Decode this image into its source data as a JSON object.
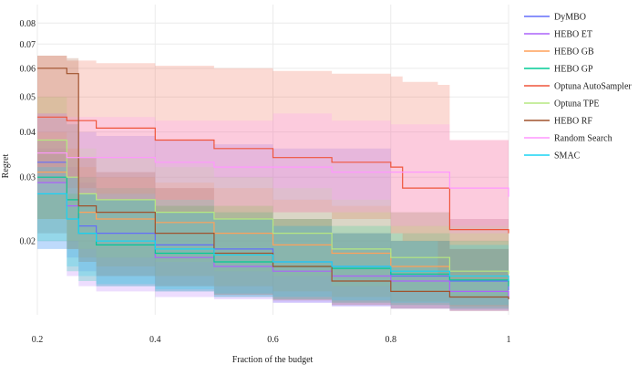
{
  "chart_data": {
    "type": "line",
    "xlabel": "Fraction of the budget",
    "ylabel": "Regret",
    "xlim": [
      0.2,
      1.0
    ],
    "ylim_log": [
      0.0125,
      0.09
    ],
    "y_scale": "log",
    "grid": true,
    "legend_placement": "right",
    "x_ticks": [
      {
        "value": 0.2,
        "label": "0.2"
      },
      {
        "value": 0.4,
        "label": "0.4"
      },
      {
        "value": 0.6,
        "label": "0.6"
      },
      {
        "value": 0.8,
        "label": "0.8"
      },
      {
        "value": 1.0,
        "label": "1"
      }
    ],
    "y_ticks": [
      {
        "value": 0.02,
        "label": "0.02"
      },
      {
        "value": 0.03,
        "label": "0.03"
      },
      {
        "value": 0.04,
        "label": "0.04"
      },
      {
        "value": 0.05,
        "label": "0.05"
      },
      {
        "value": 0.06,
        "label": "0.06"
      },
      {
        "value": 0.07,
        "label": "0.07"
      },
      {
        "value": 0.08,
        "label": "0.08"
      }
    ],
    "series": [
      {
        "name": "DyMBO",
        "color": "#636efa",
        "x": [
          0.2,
          0.25,
          0.27,
          0.3,
          0.4,
          0.5,
          0.6,
          0.7,
          0.8,
          0.9,
          1.0
        ],
        "y": [
          0.033,
          0.026,
          0.022,
          0.021,
          0.0195,
          0.019,
          0.0175,
          0.017,
          0.016,
          0.0155,
          0.0146
        ],
        "band_upper": [
          0.045,
          0.042,
          0.04,
          0.039,
          0.038,
          0.037,
          0.036,
          0.036,
          0.024,
          0.023,
          0.022
        ],
        "band_lower": [
          0.024,
          0.021,
          0.018,
          0.0165,
          0.015,
          0.0145,
          0.014,
          0.0135,
          0.0132,
          0.013,
          0.0129
        ]
      },
      {
        "name": "HEBO ET",
        "color": "#ab63fa",
        "x": [
          0.2,
          0.25,
          0.27,
          0.3,
          0.4,
          0.5,
          0.6,
          0.7,
          0.8,
          0.9,
          1.0
        ],
        "y": [
          0.029,
          0.025,
          0.021,
          0.0195,
          0.018,
          0.017,
          0.0165,
          0.016,
          0.0155,
          0.0145,
          0.0138
        ],
        "band_upper": [
          0.036,
          0.032,
          0.029,
          0.027,
          0.025,
          0.023,
          0.022,
          0.021,
          0.02,
          0.019,
          0.018
        ],
        "band_lower": [
          0.022,
          0.019,
          0.016,
          0.015,
          0.0145,
          0.014,
          0.0138,
          0.0135,
          0.0132,
          0.013,
          0.0128
        ]
      },
      {
        "name": "HEBO GB",
        "color": "#ffa15a",
        "x": [
          0.2,
          0.25,
          0.27,
          0.3,
          0.4,
          0.5,
          0.6,
          0.7,
          0.8,
          0.9,
          1.0
        ],
        "y": [
          0.031,
          0.026,
          0.024,
          0.023,
          0.0225,
          0.021,
          0.0195,
          0.0185,
          0.017,
          0.016,
          0.0152
        ],
        "band_upper": [
          0.04,
          0.036,
          0.032,
          0.03,
          0.029,
          0.028,
          0.026,
          0.025,
          0.024,
          0.023,
          0.022
        ],
        "band_lower": [
          0.024,
          0.021,
          0.019,
          0.018,
          0.017,
          0.016,
          0.015,
          0.0145,
          0.014,
          0.0136,
          0.0132
        ]
      },
      {
        "name": "HEBO GP",
        "color": "#00cc96",
        "x": [
          0.2,
          0.25,
          0.27,
          0.3,
          0.4,
          0.5,
          0.6,
          0.7,
          0.8,
          0.9,
          1.0
        ],
        "y": [
          0.03,
          0.026,
          0.021,
          0.0195,
          0.0185,
          0.0175,
          0.017,
          0.0168,
          0.0162,
          0.0156,
          0.015
        ],
        "band_upper": [
          0.038,
          0.034,
          0.03,
          0.028,
          0.026,
          0.024,
          0.023,
          0.022,
          0.021,
          0.02,
          0.019
        ],
        "band_lower": [
          0.023,
          0.02,
          0.0165,
          0.0155,
          0.015,
          0.0145,
          0.014,
          0.0138,
          0.0135,
          0.0133,
          0.013
        ]
      },
      {
        "name": "Optuna AutoSampler",
        "color": "#ef553b",
        "x": [
          0.2,
          0.25,
          0.3,
          0.4,
          0.5,
          0.6,
          0.7,
          0.8,
          0.82,
          0.88,
          0.9,
          1.0
        ],
        "y": [
          0.044,
          0.043,
          0.041,
          0.038,
          0.036,
          0.034,
          0.033,
          0.032,
          0.028,
          0.028,
          0.0215,
          0.021
        ],
        "band_upper": [
          0.065,
          0.063,
          0.062,
          0.061,
          0.06,
          0.059,
          0.058,
          0.057,
          0.055,
          0.054,
          0.038,
          0.037
        ],
        "band_lower": [
          0.03,
          0.029,
          0.028,
          0.027,
          0.026,
          0.025,
          0.024,
          0.023,
          0.021,
          0.02,
          0.016,
          0.0155
        ]
      },
      {
        "name": "Optuna TPE",
        "color": "#b6e880",
        "x": [
          0.2,
          0.25,
          0.27,
          0.3,
          0.4,
          0.5,
          0.6,
          0.7,
          0.8,
          0.9,
          1.0
        ],
        "y": [
          0.038,
          0.03,
          0.027,
          0.026,
          0.024,
          0.023,
          0.021,
          0.019,
          0.018,
          0.0165,
          0.0162
        ],
        "band_upper": [
          0.05,
          0.042,
          0.036,
          0.034,
          0.032,
          0.03,
          0.028,
          0.026,
          0.024,
          0.022,
          0.021
        ],
        "band_lower": [
          0.027,
          0.023,
          0.02,
          0.019,
          0.018,
          0.0175,
          0.0165,
          0.016,
          0.015,
          0.0145,
          0.014
        ]
      },
      {
        "name": "HEBO RF",
        "color": "#a0522d",
        "x": [
          0.2,
          0.25,
          0.27,
          0.3,
          0.4,
          0.5,
          0.6,
          0.7,
          0.8,
          0.9,
          1.0
        ],
        "y": [
          0.06,
          0.058,
          0.025,
          0.024,
          0.021,
          0.0185,
          0.017,
          0.0155,
          0.0145,
          0.014,
          0.0138
        ],
        "band_upper": [
          0.065,
          0.064,
          0.034,
          0.031,
          0.028,
          0.025,
          0.023,
          0.021,
          0.02,
          0.019,
          0.018
        ],
        "band_lower": [
          0.026,
          0.023,
          0.019,
          0.0175,
          0.016,
          0.015,
          0.0142,
          0.0137,
          0.0133,
          0.013,
          0.0128
        ]
      },
      {
        "name": "Random Search",
        "color": "#ff97ff",
        "x": [
          0.2,
          0.25,
          0.3,
          0.4,
          0.5,
          0.6,
          0.7,
          0.8,
          0.9,
          1.0
        ],
        "y": [
          0.035,
          0.034,
          0.034,
          0.033,
          0.032,
          0.032,
          0.031,
          0.031,
          0.028,
          0.0265
        ],
        "band_upper": [
          0.045,
          0.044,
          0.044,
          0.043,
          0.043,
          0.045,
          0.043,
          0.042,
          0.038,
          0.037
        ],
        "band_lower": [
          0.028,
          0.027,
          0.027,
          0.026,
          0.025,
          0.025,
          0.024,
          0.024,
          0.022,
          0.021
        ]
      },
      {
        "name": "SMAC",
        "color": "#19d3f3",
        "x": [
          0.2,
          0.25,
          0.27,
          0.3,
          0.4,
          0.5,
          0.6,
          0.7,
          0.8,
          0.9,
          1.0
        ],
        "y": [
          0.027,
          0.023,
          0.021,
          0.02,
          0.019,
          0.0183,
          0.0175,
          0.017,
          0.0165,
          0.016,
          0.0155
        ],
        "band_upper": [
          0.032,
          0.03,
          0.027,
          0.026,
          0.024,
          0.023,
          0.022,
          0.021,
          0.02,
          0.0195,
          0.019
        ],
        "band_lower": [
          0.022,
          0.019,
          0.017,
          0.016,
          0.0152,
          0.0147,
          0.0143,
          0.014,
          0.0137,
          0.0135,
          0.0133
        ]
      }
    ]
  }
}
